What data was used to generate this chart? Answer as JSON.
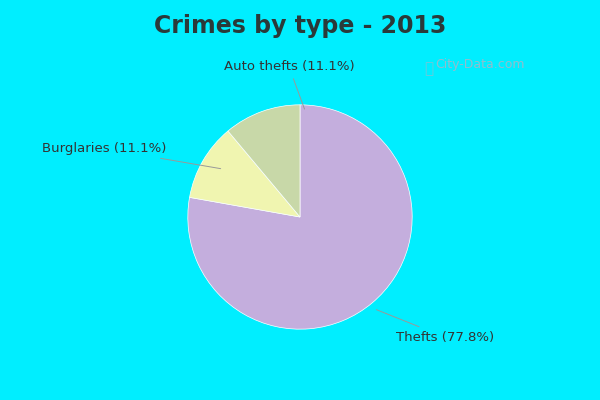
{
  "title": "Crimes by type - 2013",
  "slices": [
    {
      "label": "Thefts (77.8%)",
      "value": 77.8,
      "color": "#c4aedd"
    },
    {
      "label": "Auto thefts (11.1%)",
      "value": 11.1,
      "color": "#f0f5b0"
    },
    {
      "label": "Burglaries (11.1%)",
      "value": 11.1,
      "color": "#c8d8a8"
    }
  ],
  "cyan_color": "#00eeff",
  "bg_color": "#d8ede0",
  "title_fontsize": 17,
  "label_fontsize": 9.5,
  "watermark": "City-Data.com",
  "startangle": 90,
  "title_color": "#2a3a3a"
}
